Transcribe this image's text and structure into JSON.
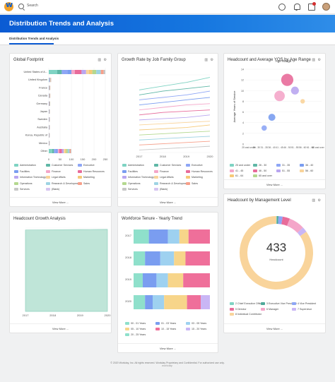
{
  "topbar": {
    "search_label": "Search"
  },
  "banner": {
    "title": "Distribution Trends and Analysis"
  },
  "tabs": [
    {
      "label": "Distribution Trends and Analysis"
    }
  ],
  "icons": {
    "tools": "⚙",
    "tools_icons": [
      "column-chart-icon",
      "gear-icon"
    ]
  },
  "cards": {
    "global_footprint": {
      "title": "Global Footprint",
      "view_more": "View More ...",
      "legend": [
        "Administration",
        "Customer Services",
        "Executive",
        "Facilities",
        "Finance",
        "Human Resources",
        "Information Technology",
        "Legal Affairs",
        "Marketing",
        "Operations",
        "Research & Development",
        "Sales",
        "Services",
        "(Blank)"
      ]
    },
    "growth_rate": {
      "title": "Growth Rate by Job Family Group",
      "view_more": "View More ...",
      "legend": [
        "Administration",
        "Customer Services",
        "Executive",
        "Facilities",
        "Finance",
        "Human Resources",
        "Information Technology",
        "Legal Affairs",
        "Marketing",
        "Operations",
        "Research & Development",
        "Sales",
        "Services",
        "(Blank)"
      ]
    },
    "headcount_yos": {
      "title": "Headcount and Average YOS by Age Range",
      "view_more": "View More ...",
      "legend": [
        "25 and under",
        "26 - 30",
        "31 - 35",
        "36 - 40",
        "41 - 45",
        "46 - 50",
        "51 - 55",
        "56 - 60",
        "61 - 64",
        "65 and over"
      ]
    },
    "headcount_growth": {
      "title": "Headcount Growth Analysis",
      "view_more": "View More ..."
    },
    "workforce_tenure": {
      "title": "Workforce Tenure - Yearly Trend",
      "view_more": "View More ...",
      "legend": [
        "00 - 01 Years",
        "01 - 03 Years",
        "03 - 05 Years",
        "05 - 10 Years",
        "10 - 15 Years",
        "15 - 20 Years",
        "20 - 25 Years"
      ]
    },
    "management_level": {
      "title": "Headcount by Management Level",
      "view_more": "View More ...",
      "center_value": "433",
      "center_caption": "Headcount",
      "legend": [
        "2 Chief Executive Officer",
        "3 Executive Vice President",
        "4 Vice President",
        "5 Director",
        "6 Manager",
        "7 Supervisor",
        "8 Individual Contributor"
      ]
    }
  },
  "footer": {
    "text": "© 2020 Workday, Inc. All rights reserved.   Workday Proprietary and Confidential. For authorized use only.",
    "logo": "workday"
  },
  "chart_data": [
    {
      "type": "bar",
      "title": "Global Footprint",
      "orientation": "horizontal",
      "stacked": true,
      "categories": [
        "United States of A...",
        "United Kingdom",
        "France",
        "Canada",
        "Germany",
        "Japan",
        "Sweden",
        "Australia",
        "Korea, Republic of",
        "Mexico",
        "Other"
      ],
      "values": [
        250,
        10,
        6,
        6,
        5,
        4,
        4,
        4,
        3,
        3,
        100
      ],
      "xticks": [
        "0",
        "50",
        "100",
        "150",
        "200",
        "250"
      ],
      "xlim": [
        0,
        250
      ]
    },
    {
      "type": "line",
      "title": "Growth Rate by Job Family Group",
      "x": [
        "2017",
        "2018",
        "2019",
        "2020"
      ],
      "series": [
        {
          "values": [
            100,
            103,
            106,
            110
          ]
        },
        {
          "values": [
            96,
            99,
            101,
            103
          ]
        },
        {
          "values": [
            92,
            94,
            96,
            99
          ]
        },
        {
          "values": [
            88,
            90,
            92,
            94
          ]
        },
        {
          "values": [
            84,
            86,
            88,
            89
          ]
        },
        {
          "values": [
            80,
            82,
            83,
            84
          ]
        },
        {
          "values": [
            76,
            77,
            78,
            80
          ]
        },
        {
          "values": [
            72,
            73,
            74,
            75
          ]
        },
        {
          "values": [
            68,
            69,
            70,
            72
          ]
        },
        {
          "values": [
            64,
            65,
            66,
            67
          ]
        },
        {
          "values": [
            60,
            61,
            62,
            63
          ]
        },
        {
          "values": [
            56,
            57,
            58,
            59
          ]
        },
        {
          "values": [
            52,
            53,
            54,
            55
          ]
        }
      ]
    },
    {
      "type": "scatter",
      "title": "Headcount and Average YOS by Age Range",
      "xlabel": "Age Range",
      "ylabel": "Average Years of Service",
      "categories": [
        "25 and under",
        "26 - 30",
        "31 - 35",
        "36 - 40",
        "41 - 45",
        "46 - 50",
        "51 - 55",
        "56 - 60",
        "61 - 64",
        "65 and over"
      ],
      "y": [
        0,
        0,
        3,
        5,
        9,
        12,
        10,
        8,
        0,
        0
      ],
      "size": [
        0,
        0,
        6,
        10,
        18,
        22,
        12,
        4,
        0,
        0
      ],
      "yticks": [
        "0",
        "2",
        "4",
        "6",
        "8",
        "10",
        "12",
        "14"
      ],
      "ylim": [
        0,
        14
      ]
    },
    {
      "type": "area",
      "title": "Headcount Growth Analysis",
      "x": [
        "2017",
        "2018",
        "2019",
        "2020"
      ],
      "values": [
        430,
        431,
        432,
        433
      ],
      "xticks": [
        "2017",
        "2018",
        "2019",
        "2020"
      ]
    },
    {
      "type": "bar",
      "title": "Workforce Tenure - Yearly Trend",
      "orientation": "horizontal",
      "stacked": true,
      "categories": [
        "2017",
        "2018",
        "2019",
        "2020"
      ],
      "series": [
        {
          "name": "00 - 01 Years",
          "values": [
            20,
            15,
            12,
            15
          ]
        },
        {
          "name": "01 - 03 Years",
          "values": [
            25,
            20,
            18,
            10
          ]
        },
        {
          "name": "03 - 05 Years",
          "values": [
            15,
            18,
            15,
            15
          ]
        },
        {
          "name": "05 - 10 Years",
          "values": [
            12,
            15,
            20,
            30
          ]
        },
        {
          "name": "10 - 15 Years",
          "values": [
            28,
            32,
            35,
            18
          ]
        },
        {
          "name": "15 - 20 Years",
          "values": [
            0,
            0,
            0,
            12
          ]
        }
      ]
    },
    {
      "type": "pie",
      "title": "Headcount by Management Level",
      "donut": true,
      "total": 433,
      "categories": [
        "2 Chief Executive Officer",
        "3 Executive Vice President",
        "4 Vice President",
        "5 Director",
        "6 Manager",
        "7 Supervisor",
        "8 Individual Contributor"
      ],
      "values": [
        1,
        3,
        8,
        14,
        30,
        10,
        367
      ]
    }
  ],
  "colors": {
    "blue": "#1565c0",
    "accent": "#0b5bd3",
    "pal": [
      "#7fd3c3",
      "#5fb7a6",
      "#8ea6f5",
      "#7a9df0",
      "#f4a6c9",
      "#e86b9a",
      "#b9a6f0",
      "#f9d49b",
      "#f6c978",
      "#b4d88f",
      "#9ed3e3",
      "#f7a08a",
      "#c7c7c7",
      "#d6c5f0"
    ]
  }
}
